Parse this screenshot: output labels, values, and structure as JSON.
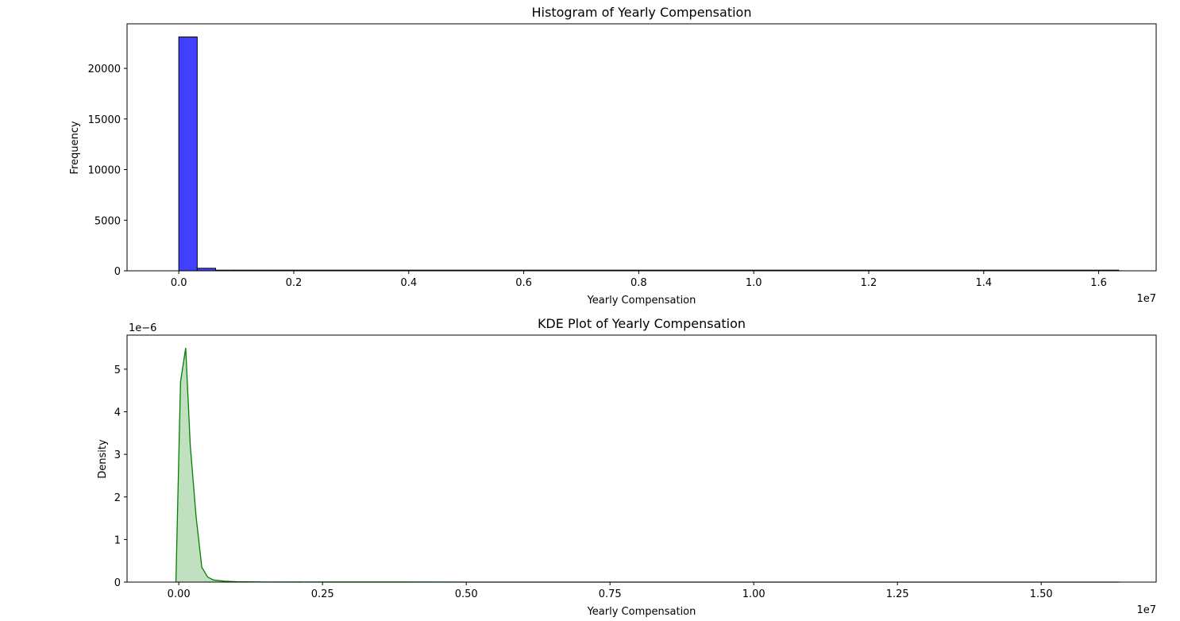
{
  "chart_data": [
    {
      "type": "bar",
      "title": "Histogram of Yearly Compensation",
      "xlabel": "Yearly Compensation",
      "ylabel": "Frequency",
      "x_offset_label": "1e7",
      "xlim": [
        -0.09,
        1.7
      ],
      "ylim": [
        0,
        24400
      ],
      "xticks": [
        0.0,
        0.2,
        0.4,
        0.6,
        0.8,
        1.0,
        1.2,
        1.4,
        1.6
      ],
      "xtick_labels": [
        "0.0",
        "0.2",
        "0.4",
        "0.6",
        "0.8",
        "1.0",
        "1.2",
        "1.4",
        "1.6"
      ],
      "yticks": [
        0,
        5000,
        10000,
        15000,
        20000
      ],
      "ytick_labels": [
        "0",
        "5000",
        "10000",
        "15000",
        "20000"
      ],
      "bar_color": "#4040ff",
      "bar_edge": "#000000",
      "bins": [
        {
          "x0": 0.0,
          "x1": 0.032,
          "count": 23100
        },
        {
          "x0": 0.032,
          "x1": 0.064,
          "count": 250
        },
        {
          "x0": 0.064,
          "x1": 0.096,
          "count": 20
        },
        {
          "x0": 0.096,
          "x1": 0.128,
          "count": 8
        },
        {
          "x0": 0.128,
          "x1": 0.16,
          "count": 5
        },
        {
          "x0": 0.16,
          "x1": 0.2,
          "count": 3
        },
        {
          "x0": 0.2,
          "x1": 1.635,
          "count": 1
        }
      ]
    },
    {
      "type": "area",
      "title": "KDE Plot of Yearly Compensation",
      "xlabel": "Yearly Compensation",
      "ylabel": "Density",
      "x_offset_label": "1e7",
      "y_offset_label": "1e−6",
      "xlim": [
        -0.09,
        1.7
      ],
      "ylim": [
        0,
        5.8
      ],
      "xticks": [
        0.0,
        0.25,
        0.5,
        0.75,
        1.0,
        1.25,
        1.5
      ],
      "xtick_labels": [
        "0.00",
        "0.25",
        "0.50",
        "0.75",
        "1.00",
        "1.25",
        "1.50"
      ],
      "yticks": [
        0,
        1,
        2,
        3,
        4,
        5
      ],
      "ytick_labels": [
        "0",
        "1",
        "2",
        "3",
        "4",
        "5"
      ],
      "line_color": "#008000",
      "fill_color": "#c0e0c0",
      "x": [
        -0.005,
        0.003,
        0.012,
        0.02,
        0.03,
        0.04,
        0.05,
        0.06,
        0.08,
        0.1,
        0.15,
        0.25,
        0.5,
        1.0,
        1.5,
        1.635
      ],
      "y": [
        0.0,
        4.7,
        5.5,
        3.2,
        1.55,
        0.35,
        0.12,
        0.05,
        0.02,
        0.008,
        0.003,
        0.001,
        0.0005,
        0.0003,
        0.0002,
        0.0
      ]
    }
  ]
}
